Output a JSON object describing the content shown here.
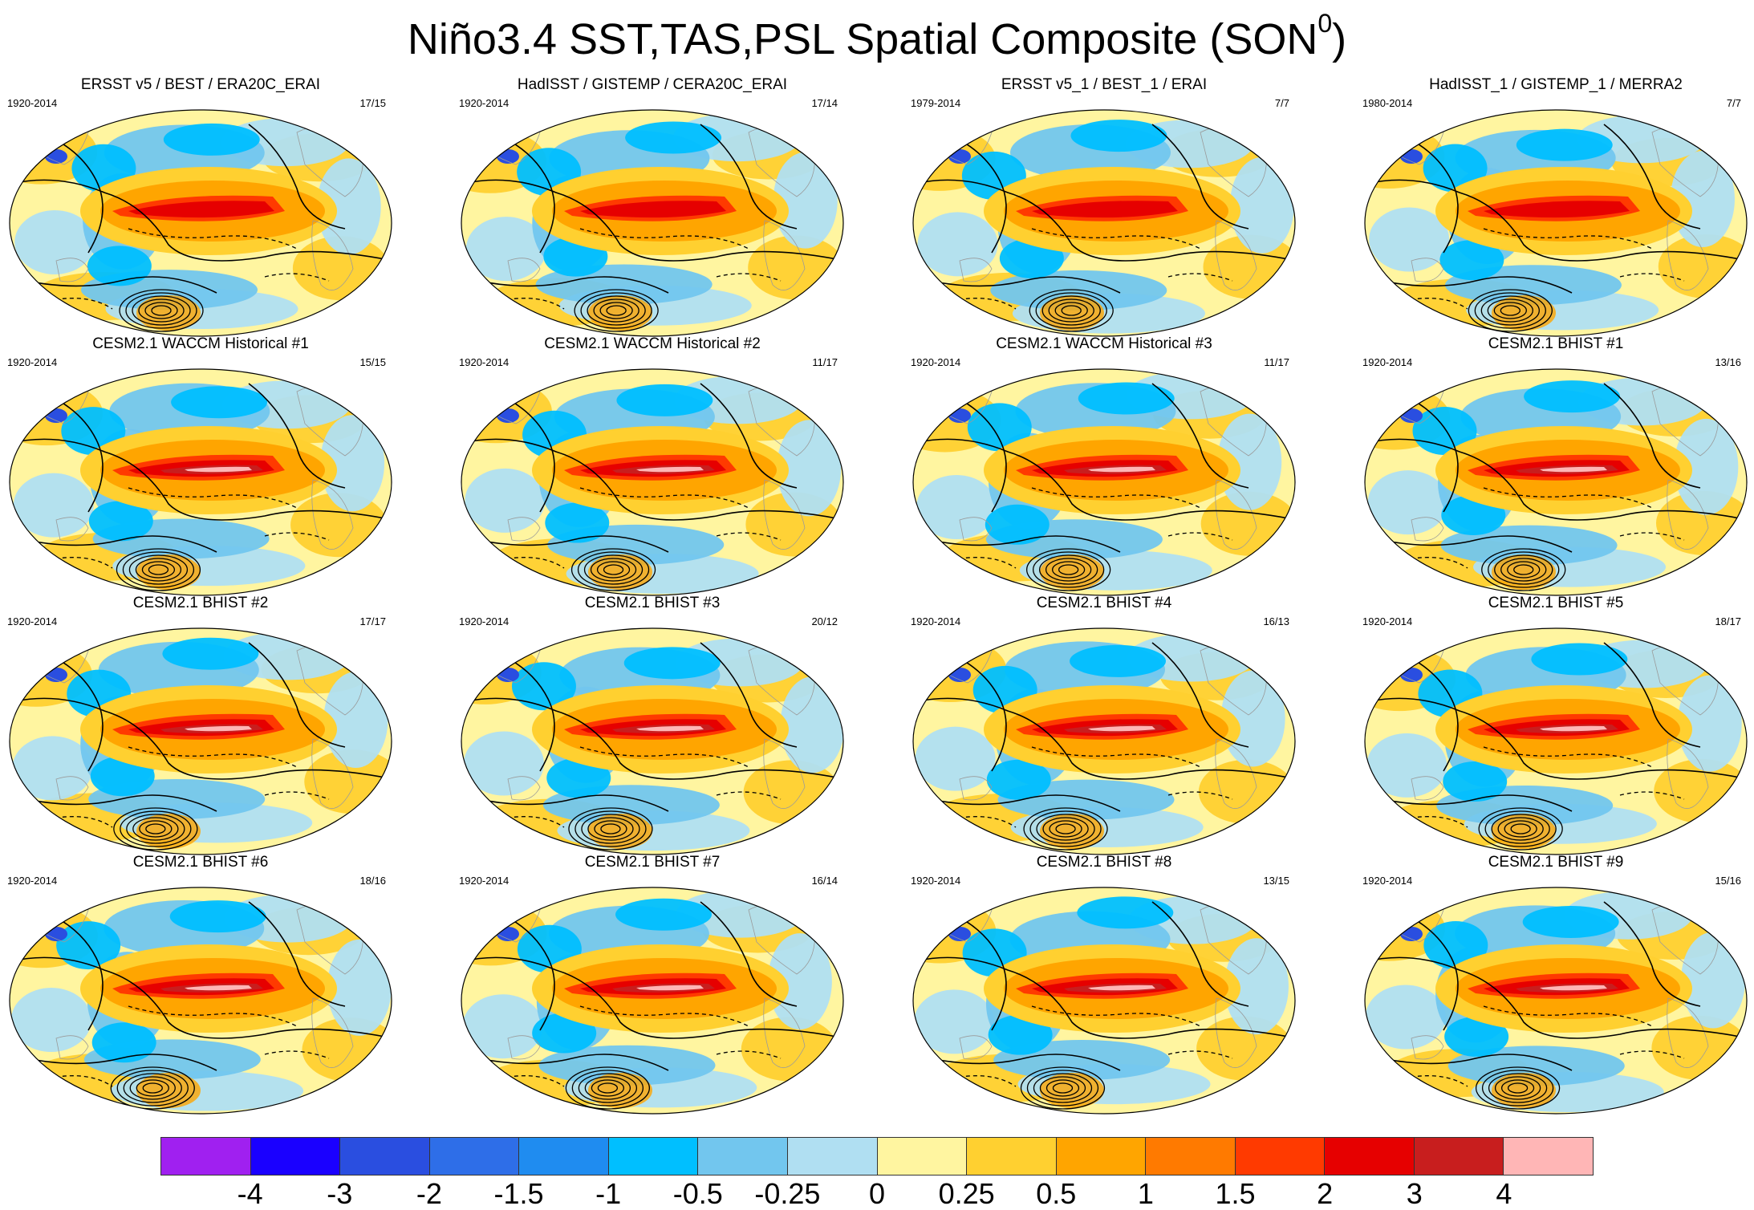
{
  "figure": {
    "title": "Niño3.4 SST,TAS,PSL Spatial Composite (SON",
    "title_superscript": "0",
    "title_close": ")"
  },
  "panels": [
    {
      "title": "ERSST v5 / BEST / ERA20C_ERAI",
      "years": "1920-2014",
      "count": "17/15"
    },
    {
      "title": "HadISST / GISTEMP / CERA20C_ERAI",
      "years": "1920-2014",
      "count": "17/14"
    },
    {
      "title": "ERSST v5_1 / BEST_1 / ERAI",
      "years": "1979-2014",
      "count": "7/7"
    },
    {
      "title": "HadISST_1 / GISTEMP_1 / MERRA2",
      "years": "1980-2014",
      "count": "7/7"
    },
    {
      "title": "CESM2.1 WACCM Historical #1",
      "years": "1920-2014",
      "count": "15/15"
    },
    {
      "title": "CESM2.1 WACCM Historical #2",
      "years": "1920-2014",
      "count": "11/17"
    },
    {
      "title": "CESM2.1 WACCM Historical #3",
      "years": "1920-2014",
      "count": "11/17"
    },
    {
      "title": "CESM2.1 BHIST #1",
      "years": "1920-2014",
      "count": "13/16"
    },
    {
      "title": "CESM2.1 BHIST #2",
      "years": "1920-2014",
      "count": "17/17"
    },
    {
      "title": "CESM2.1 BHIST #3",
      "years": "1920-2014",
      "count": "20/12"
    },
    {
      "title": "CESM2.1 BHIST #4",
      "years": "1920-2014",
      "count": "16/13"
    },
    {
      "title": "CESM2.1 BHIST #5",
      "years": "1920-2014",
      "count": "18/17"
    },
    {
      "title": "CESM2.1 BHIST #6",
      "years": "1920-2014",
      "count": "18/16"
    },
    {
      "title": "CESM2.1 BHIST #7",
      "years": "1920-2014",
      "count": "16/14"
    },
    {
      "title": "CESM2.1 BHIST #8",
      "years": "1920-2014",
      "count": "13/15"
    },
    {
      "title": "CESM2.1 BHIST #9",
      "years": "1920-2014",
      "count": "15/16"
    }
  ],
  "colorbar": {
    "colors": [
      "#a020f0",
      "#1a00ff",
      "#2a4ee0",
      "#2e6ee8",
      "#1f8cf0",
      "#00bfff",
      "#72c6ee",
      "#b0dff2",
      "#fff5a0",
      "#ffd030",
      "#ffa500",
      "#ff7a00",
      "#ff3a00",
      "#e60000",
      "#c81e1e",
      "#ffb6b6"
    ],
    "labels": [
      "-4",
      "-3",
      "-2",
      "-1.5",
      "-1",
      "-0.5",
      "-0.25",
      "0",
      "0.25",
      "0.5",
      "1",
      "1.5",
      "2",
      "3",
      "4"
    ]
  }
}
